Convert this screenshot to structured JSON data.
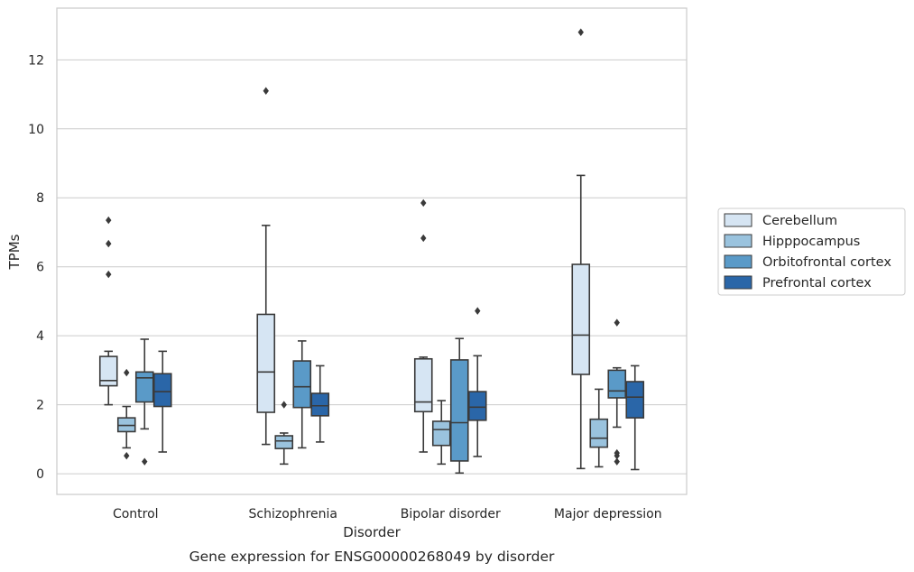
{
  "chart_data": {
    "type": "box",
    "title": "",
    "caption": "Gene expression for ENSG00000268049 by disorder",
    "xlabel": "Disorder",
    "ylabel": "TPMs",
    "categories": [
      "Control",
      "Schizophrenia",
      "Bipolar disorder",
      "Major depression"
    ],
    "ylim": [
      -0.6,
      13.5
    ],
    "yticks": [
      0,
      2,
      4,
      6,
      8,
      10,
      12
    ],
    "grid": "horizontal",
    "legend_position": "right",
    "series": [
      {
        "name": "Cerebellum",
        "color": "#d6e5f3",
        "boxes": [
          {
            "whisker_low": 2.0,
            "q1": 2.55,
            "median": 2.7,
            "q3": 3.4,
            "whisker_high": 3.55,
            "outliers": [
              5.78,
              6.67,
              7.35
            ]
          },
          {
            "whisker_low": 0.85,
            "q1": 1.78,
            "median": 2.95,
            "q3": 4.62,
            "whisker_high": 7.2,
            "outliers": [
              11.1
            ]
          },
          {
            "whisker_low": 0.63,
            "q1": 1.8,
            "median": 2.08,
            "q3": 3.33,
            "whisker_high": 3.38,
            "outliers": [
              6.83,
              7.85
            ]
          },
          {
            "whisker_low": 0.15,
            "q1": 2.88,
            "median": 4.02,
            "q3": 6.07,
            "whisker_high": 8.65,
            "outliers": [
              12.8
            ]
          }
        ]
      },
      {
        "name": "Hipppocampus",
        "color": "#9ac3de",
        "boxes": [
          {
            "whisker_low": 0.75,
            "q1": 1.22,
            "median": 1.4,
            "q3": 1.62,
            "whisker_high": 1.95,
            "outliers": [
              0.52,
              2.93
            ]
          },
          {
            "whisker_low": 0.28,
            "q1": 0.73,
            "median": 0.95,
            "q3": 1.1,
            "whisker_high": 1.18,
            "outliers": [
              2.0
            ]
          },
          {
            "whisker_low": 0.28,
            "q1": 0.82,
            "median": 1.28,
            "q3": 1.52,
            "whisker_high": 2.12,
            "outliers": []
          },
          {
            "whisker_low": 0.2,
            "q1": 0.77,
            "median": 1.03,
            "q3": 1.58,
            "whisker_high": 2.45,
            "outliers": []
          }
        ]
      },
      {
        "name": "Orbitofrontal cortex",
        "color": "#5a9ac8",
        "boxes": [
          {
            "whisker_low": 1.3,
            "q1": 2.08,
            "median": 2.78,
            "q3": 2.95,
            "whisker_high": 3.9,
            "outliers": [
              0.35
            ]
          },
          {
            "whisker_low": 0.75,
            "q1": 1.92,
            "median": 2.52,
            "q3": 3.27,
            "whisker_high": 3.85,
            "outliers": []
          },
          {
            "whisker_low": 0.02,
            "q1": 0.37,
            "median": 1.48,
            "q3": 3.3,
            "whisker_high": 3.92,
            "outliers": []
          },
          {
            "whisker_low": 1.35,
            "q1": 2.2,
            "median": 2.4,
            "q3": 3.0,
            "whisker_high": 3.07,
            "outliers": [
              0.35,
              0.52,
              0.6,
              4.38
            ]
          }
        ]
      },
      {
        "name": "Prefrontal cortex",
        "color": "#2a66a8",
        "boxes": [
          {
            "whisker_low": 0.63,
            "q1": 1.95,
            "median": 2.38,
            "q3": 2.9,
            "whisker_high": 3.55,
            "outliers": []
          },
          {
            "whisker_low": 0.92,
            "q1": 1.68,
            "median": 1.97,
            "q3": 2.33,
            "whisker_high": 3.13,
            "outliers": []
          },
          {
            "whisker_low": 0.5,
            "q1": 1.55,
            "median": 1.93,
            "q3": 2.38,
            "whisker_high": 3.42,
            "outliers": [
              4.72
            ]
          },
          {
            "whisker_low": 0.12,
            "q1": 1.62,
            "median": 2.22,
            "q3": 2.67,
            "whisker_high": 3.13,
            "outliers": []
          }
        ]
      }
    ]
  }
}
